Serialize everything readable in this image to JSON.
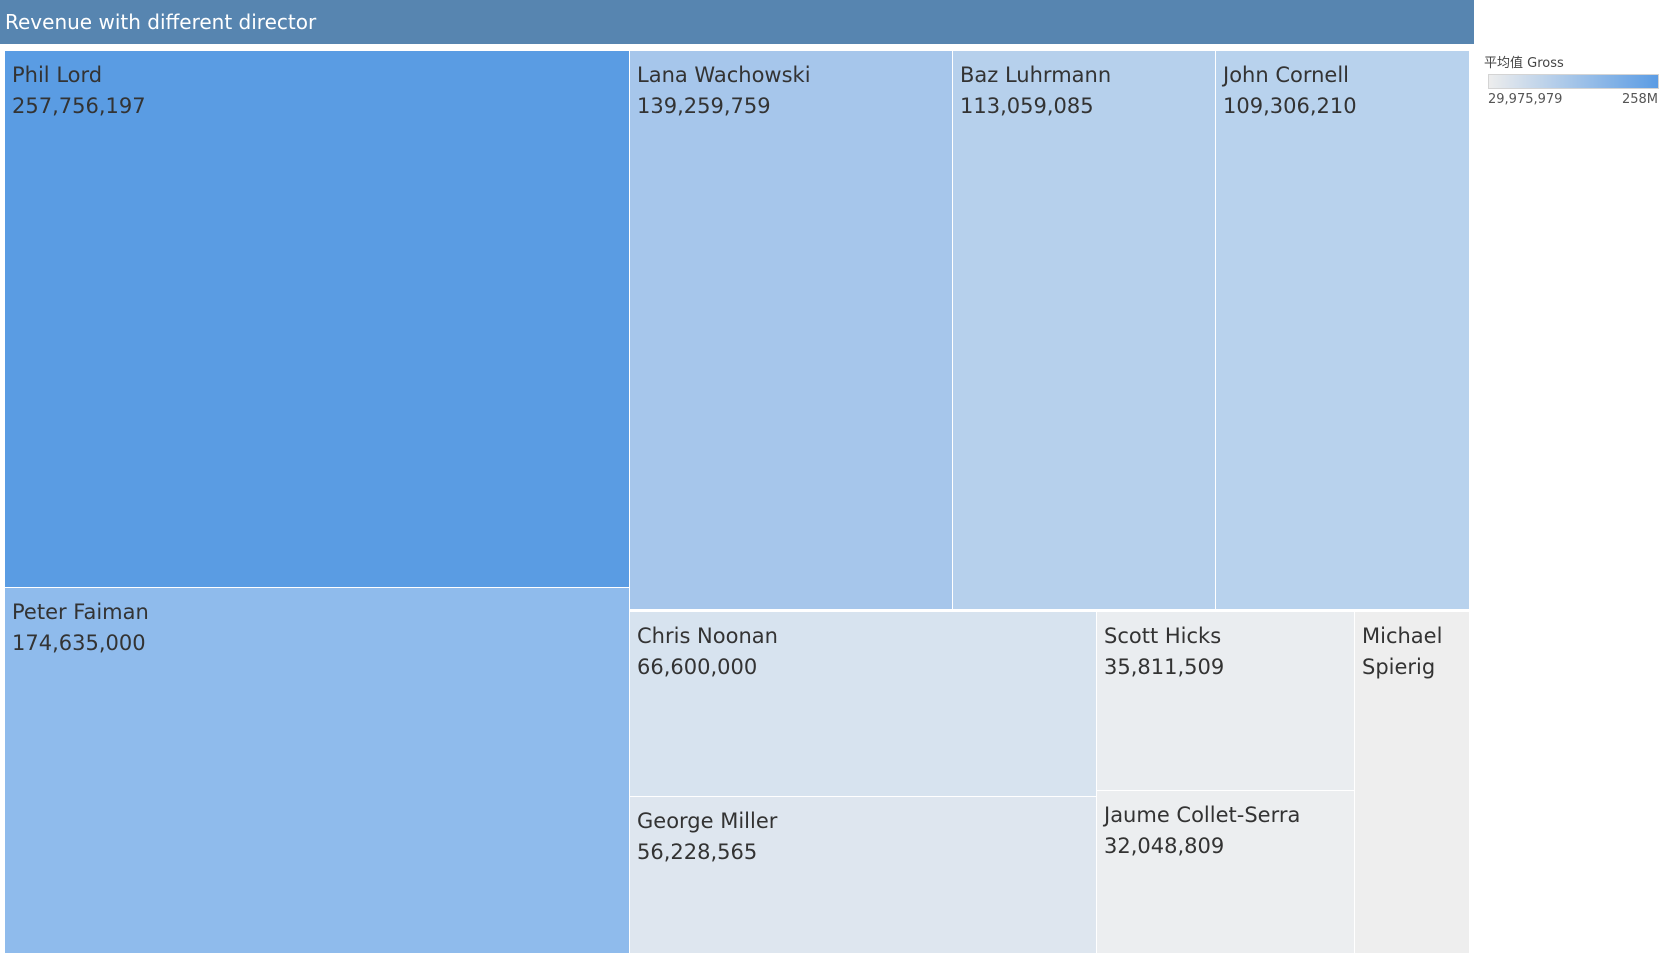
{
  "header": {
    "title": "Revenue with different director"
  },
  "legend": {
    "title": "平均值 Gross",
    "min_label": "29,975,979",
    "max_label": "258M",
    "min_color": "#ededed",
    "max_color": "#5b9ce4"
  },
  "chart_data": {
    "type": "treemap",
    "title": "Revenue with different director",
    "measure": "平均值 Gross",
    "color_range": [
      29975979,
      258000000
    ],
    "items": [
      {
        "label": "Phil Lord",
        "value": 257756197,
        "display_value": "257,756,197",
        "color": "#5a9ce3"
      },
      {
        "label": "Peter Faiman",
        "value": 174635000,
        "display_value": "174,635,000",
        "color": "#8fbbec"
      },
      {
        "label": "Lana Wachowski",
        "value": 139259759,
        "display_value": "139,259,759",
        "color": "#a6c6eb"
      },
      {
        "label": "Baz Luhrmann",
        "value": 113059085,
        "display_value": "113,059,085",
        "color": "#b6d0ec"
      },
      {
        "label": "John Cornell",
        "value": 109306210,
        "display_value": "109,306,210",
        "color": "#b8d2ed"
      },
      {
        "label": "Chris Noonan",
        "value": 66600000,
        "display_value": "66,600,000",
        "color": "#d7e3ef"
      },
      {
        "label": "George Miller",
        "value": 56228565,
        "display_value": "56,228,565",
        "color": "#dee6ef"
      },
      {
        "label": "Scott Hicks",
        "value": 35811509,
        "display_value": "35,811,509",
        "color": "#eaedf0"
      },
      {
        "label": "Jaume Collet-Serra",
        "value": 32048809,
        "display_value": "32,048,809",
        "color": "#eceef0"
      },
      {
        "label": "Michael Spierig",
        "value": 29975979,
        "display_value": "",
        "color": "#eeeeee"
      }
    ]
  }
}
